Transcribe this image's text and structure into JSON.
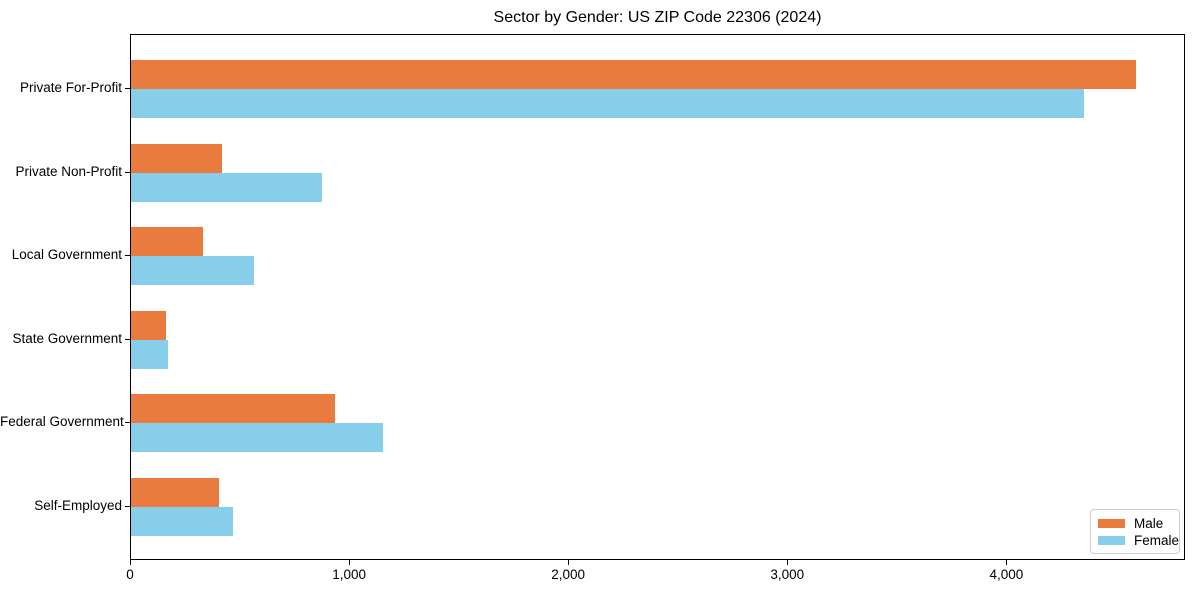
{
  "title": "Sector by Gender: US ZIP Code 22306 (2024)",
  "colors": {
    "male": "#E87B3D",
    "female": "#87CEEB",
    "spine": "#000000",
    "legend_border": "#cccccc",
    "background": "#ffffff",
    "text": "#000000"
  },
  "legend": {
    "position": "lower right",
    "items": [
      {
        "label": "Male",
        "color": "#E87B3D"
      },
      {
        "label": "Female",
        "color": "#87CEEB"
      }
    ]
  },
  "chart_data": {
    "type": "bar",
    "orientation": "horizontal",
    "title": "Sector by Gender: US ZIP Code 22306 (2024)",
    "xlabel": "",
    "ylabel": "",
    "categories": [
      "Private For-Profit",
      "Private Non-Profit",
      "Local Government",
      "State Government",
      "Federal Government",
      "Self-Employed"
    ],
    "series": [
      {
        "name": "Male",
        "color": "#E87B3D",
        "values": [
          4585,
          415,
          330,
          160,
          930,
          400
        ]
      },
      {
        "name": "Female",
        "color": "#87CEEB",
        "values": [
          4350,
          870,
          560,
          167,
          1150,
          467
        ]
      }
    ],
    "xlim": [
      0,
      4815
    ],
    "xticks": [
      0,
      1000,
      2000,
      3000,
      4000
    ],
    "xtick_labels": [
      "0",
      "1,000",
      "2,000",
      "3,000",
      "4,000"
    ],
    "grid": false,
    "legend_position": "lower right"
  }
}
